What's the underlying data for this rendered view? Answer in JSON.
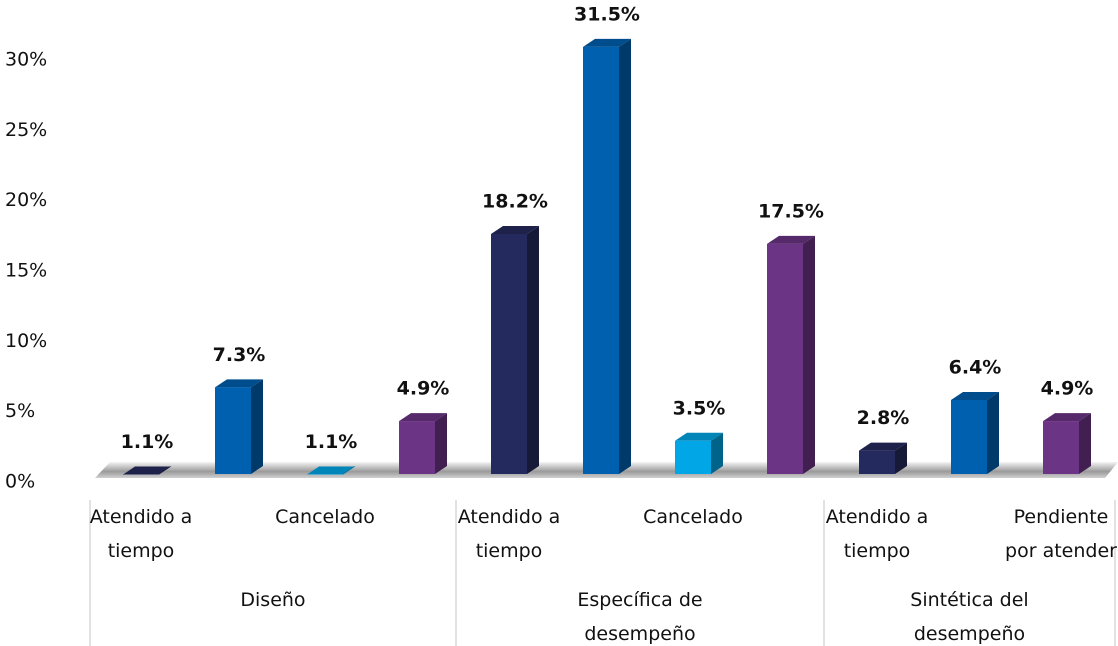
{
  "chart_data": {
    "type": "bar",
    "groups": [
      {
        "name": "Diseño",
        "categories": [
          "Atendido a tiempo",
          null,
          "Cancelado",
          null
        ],
        "values": [
          1.1,
          7.3,
          1.1,
          4.9
        ],
        "value_labels": [
          "1.1%",
          "7.3%",
          "1.1%",
          "4.9%"
        ],
        "colors": [
          "#252a5e",
          "#0060b0",
          "#00a6e6",
          "#6c3485"
        ]
      },
      {
        "name": "Específica de desempeño",
        "categories": [
          "Atendido a tiempo",
          null,
          "Cancelado",
          null
        ],
        "values": [
          18.2,
          31.5,
          3.5,
          17.5
        ],
        "value_labels": [
          "18.2%",
          "31.5%",
          "3.5%",
          "17.5%"
        ],
        "colors": [
          "#252a5e",
          "#0060b0",
          "#00a6e6",
          "#6c3485"
        ]
      },
      {
        "name": "Sintética del desempeño",
        "categories": [
          "Atendido a tiempo",
          null,
          "Pendiente por atender"
        ],
        "values": [
          2.8,
          6.4,
          4.9
        ],
        "value_labels": [
          "2.8%",
          "6.4%",
          "4.9%"
        ],
        "colors": [
          "#252a5e",
          "#0060b0",
          "#6c3485"
        ]
      }
    ],
    "ylim": [
      0,
      30
    ],
    "yticks": [
      {
        "value": 0,
        "label": "0%"
      },
      {
        "value": 5,
        "label": "5%"
      },
      {
        "value": 10,
        "label": "10%"
      },
      {
        "value": 15,
        "label": "15%"
      },
      {
        "value": 20,
        "label": "20%"
      },
      {
        "value": 25,
        "label": "25%"
      },
      {
        "value": 30,
        "label": "30%"
      }
    ],
    "grid": false
  }
}
